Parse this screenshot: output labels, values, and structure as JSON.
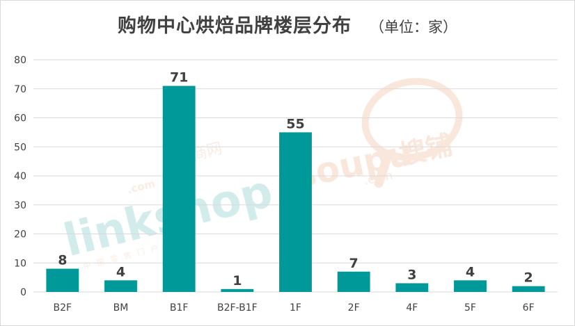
{
  "chart_data": {
    "type": "bar",
    "title": "购物中心烘焙品牌楼层分布",
    "subtitle": "（单位：家）",
    "xlabel": "",
    "ylabel": "",
    "categories": [
      "B2F",
      "BM",
      "B1F",
      "B2F-B1F",
      "1F",
      "2F",
      "4F",
      "5F",
      "6F"
    ],
    "values": [
      8,
      4,
      71,
      1,
      55,
      7,
      3,
      4,
      2
    ],
    "ylim": [
      0,
      80
    ],
    "yticks": [
      0,
      10,
      20,
      30,
      40,
      50,
      60,
      70,
      80
    ],
    "grid": true,
    "legend": "none",
    "bar_color": "#009999",
    "gridline_color": "#d9d9d9"
  },
  "watermarks": {
    "linkshop": "linkshop",
    "linkshop_com": ".com",
    "linkshop_cn": "联商网",
    "linkshop_tagline": "中国零售门户网站",
    "soupu": "soupu",
    "soupu_com": ".com",
    "soupu_cn": "搜铺"
  }
}
